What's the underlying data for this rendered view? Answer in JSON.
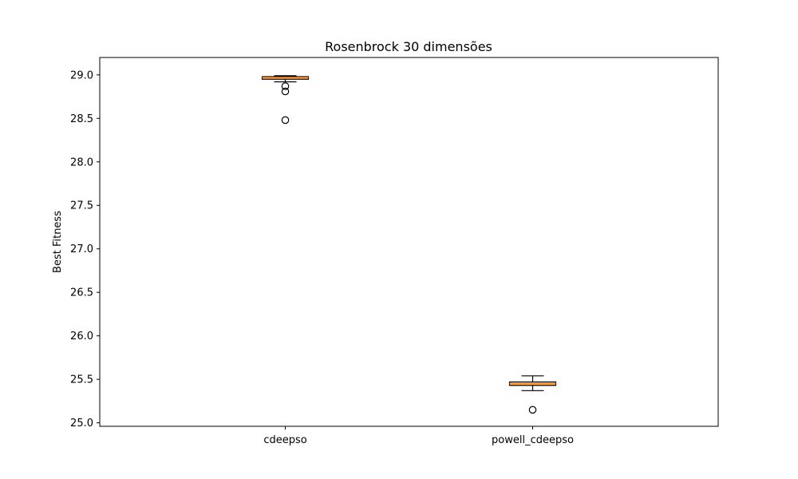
{
  "chart_data": {
    "type": "box",
    "title": "Rosenbrock 30 dimensões",
    "xlabel": "",
    "ylabel": "Best Fitness",
    "ylim": [
      24.96,
      29.2
    ],
    "yticks": [
      25.0,
      25.5,
      26.0,
      26.5,
      27.0,
      27.5,
      28.0,
      28.5,
      29.0
    ],
    "ytick_labels": [
      "25.0",
      "25.5",
      "26.0",
      "26.5",
      "27.0",
      "27.5",
      "28.0",
      "28.5",
      "29.0"
    ],
    "grid": false,
    "colors": {
      "box_fill": "#ffc898",
      "median": "#ff7f0e",
      "stroke": "#000000"
    },
    "categories": [
      "cdeepso",
      "powell_cdeepso"
    ],
    "boxes": [
      {
        "name": "cdeepso",
        "whisker_low": 28.92,
        "q1": 28.95,
        "median": 28.97,
        "q3": 28.98,
        "whisker_high": 28.99,
        "outliers": [
          28.87,
          28.81,
          28.48
        ]
      },
      {
        "name": "powell_cdeepso",
        "whisker_low": 25.37,
        "q1": 25.43,
        "median": 25.45,
        "q3": 25.47,
        "whisker_high": 25.54,
        "outliers": [
          25.15
        ]
      }
    ]
  }
}
